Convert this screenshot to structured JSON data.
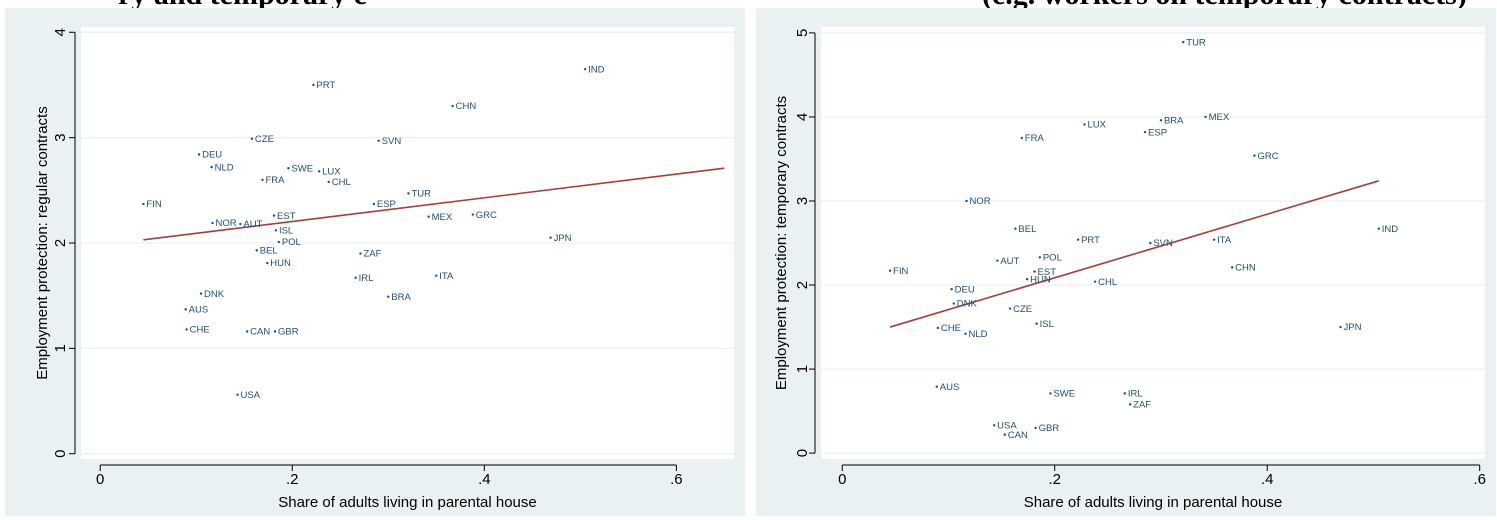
{
  "captions": {
    "left": "ry and temporary e",
    "right": "(e.g. workers on temporary contracts)"
  },
  "chart_data": [
    {
      "type": "scatter",
      "title": "",
      "xlabel": "Share of adults living in parental house",
      "ylabel": "Employment protection: regular contracts",
      "xlim": [
        -0.02,
        0.66
      ],
      "ylim": [
        -0.05,
        4.05
      ],
      "xticks": [
        0,
        0.2,
        0.4,
        0.6
      ],
      "xtick_labels": [
        "0",
        ".2",
        ".4",
        ".6"
      ],
      "yticks": [
        0,
        1,
        2,
        3,
        4
      ],
      "ytick_labels": [
        "0",
        "1",
        "2",
        "3",
        "4"
      ],
      "grid": "horizontal",
      "colors": {
        "points": "#1f4e79",
        "fit_line": "#a0403a"
      },
      "fit_line": {
        "x": [
          0.045,
          0.65
        ],
        "y": [
          2.03,
          2.71
        ]
      },
      "points": [
        {
          "label": "FIN",
          "x": 0.045,
          "y": 2.37
        },
        {
          "label": "DEU",
          "x": 0.103,
          "y": 2.84
        },
        {
          "label": "NLD",
          "x": 0.116,
          "y": 2.72
        },
        {
          "label": "CZE",
          "x": 0.158,
          "y": 2.99
        },
        {
          "label": "NOR",
          "x": 0.117,
          "y": 2.19
        },
        {
          "label": "AUT",
          "x": 0.146,
          "y": 2.18
        },
        {
          "label": "DNK",
          "x": 0.105,
          "y": 1.52
        },
        {
          "label": "AUS",
          "x": 0.089,
          "y": 1.37
        },
        {
          "label": "CHE",
          "x": 0.09,
          "y": 1.18
        },
        {
          "label": "CAN",
          "x": 0.153,
          "y": 1.16
        },
        {
          "label": "GBR",
          "x": 0.182,
          "y": 1.16
        },
        {
          "label": "USA",
          "x": 0.143,
          "y": 0.56
        },
        {
          "label": "PRT",
          "x": 0.222,
          "y": 3.5
        },
        {
          "label": "SWE",
          "x": 0.196,
          "y": 2.71
        },
        {
          "label": "FRA",
          "x": 0.169,
          "y": 2.6
        },
        {
          "label": "LUX",
          "x": 0.228,
          "y": 2.68
        },
        {
          "label": "CHL",
          "x": 0.238,
          "y": 2.58
        },
        {
          "label": "EST",
          "x": 0.181,
          "y": 2.26
        },
        {
          "label": "ISL",
          "x": 0.183,
          "y": 2.12
        },
        {
          "label": "POL",
          "x": 0.186,
          "y": 2.01
        },
        {
          "label": "BEL",
          "x": 0.163,
          "y": 1.93
        },
        {
          "label": "HUN",
          "x": 0.174,
          "y": 1.81
        },
        {
          "label": "SVN",
          "x": 0.29,
          "y": 2.97
        },
        {
          "label": "ESP",
          "x": 0.285,
          "y": 2.37
        },
        {
          "label": "ZAF",
          "x": 0.271,
          "y": 1.9
        },
        {
          "label": "IRL",
          "x": 0.266,
          "y": 1.67
        },
        {
          "label": "BRA",
          "x": 0.3,
          "y": 1.49
        },
        {
          "label": "CHN",
          "x": 0.367,
          "y": 3.3
        },
        {
          "label": "TUR",
          "x": 0.321,
          "y": 2.47
        },
        {
          "label": "MEX",
          "x": 0.342,
          "y": 2.25
        },
        {
          "label": "GRC",
          "x": 0.388,
          "y": 2.27
        },
        {
          "label": "ITA",
          "x": 0.35,
          "y": 1.69
        },
        {
          "label": "JPN",
          "x": 0.469,
          "y": 2.05
        },
        {
          "label": "IND",
          "x": 0.505,
          "y": 3.65
        }
      ]
    },
    {
      "type": "scatter",
      "title": "",
      "xlabel": "Share of adults living in parental house",
      "ylabel": "Employment protection: temporary contracts",
      "xlim": [
        -0.02,
        0.605
      ],
      "ylim": [
        -0.07,
        5.07
      ],
      "xticks": [
        0,
        0.2,
        0.4,
        0.6
      ],
      "xtick_labels": [
        "0",
        ".2",
        ".4",
        ".6"
      ],
      "yticks": [
        0,
        1,
        2,
        3,
        4,
        5
      ],
      "ytick_labels": [
        "0",
        "1",
        "2",
        "3",
        "4",
        "5"
      ],
      "grid": "horizontal",
      "colors": {
        "points": "#1f4e79",
        "fit_line": "#a0403a"
      },
      "fit_line": {
        "x": [
          0.045,
          0.505
        ],
        "y": [
          1.5,
          3.24
        ]
      },
      "points": [
        {
          "label": "FIN",
          "x": 0.045,
          "y": 2.17
        },
        {
          "label": "DEU",
          "x": 0.103,
          "y": 1.95
        },
        {
          "label": "DNK",
          "x": 0.105,
          "y": 1.78
        },
        {
          "label": "CHE",
          "x": 0.09,
          "y": 1.49
        },
        {
          "label": "NLD",
          "x": 0.116,
          "y": 1.42
        },
        {
          "label": "AUS",
          "x": 0.089,
          "y": 0.79
        },
        {
          "label": "NOR",
          "x": 0.117,
          "y": 3.0
        },
        {
          "label": "BEL",
          "x": 0.163,
          "y": 2.67
        },
        {
          "label": "AUT",
          "x": 0.146,
          "y": 2.29
        },
        {
          "label": "CZE",
          "x": 0.158,
          "y": 1.72
        },
        {
          "label": "USA",
          "x": 0.143,
          "y": 0.33
        },
        {
          "label": "CAN",
          "x": 0.153,
          "y": 0.22
        },
        {
          "label": "GBR",
          "x": 0.182,
          "y": 0.3
        },
        {
          "label": "FRA",
          "x": 0.169,
          "y": 3.75
        },
        {
          "label": "POL",
          "x": 0.186,
          "y": 2.33
        },
        {
          "label": "EST",
          "x": 0.181,
          "y": 2.16
        },
        {
          "label": "HUN",
          "x": 0.174,
          "y": 2.07
        },
        {
          "label": "ISL",
          "x": 0.183,
          "y": 1.54
        },
        {
          "label": "SWE",
          "x": 0.196,
          "y": 0.71
        },
        {
          "label": "PRT",
          "x": 0.222,
          "y": 2.54
        },
        {
          "label": "CHL",
          "x": 0.238,
          "y": 2.04
        },
        {
          "label": "LUX",
          "x": 0.228,
          "y": 3.91
        },
        {
          "label": "ESP",
          "x": 0.285,
          "y": 3.82
        },
        {
          "label": "SVN",
          "x": 0.29,
          "y": 2.5
        },
        {
          "label": "IRL",
          "x": 0.266,
          "y": 0.71
        },
        {
          "label": "ZAF",
          "x": 0.271,
          "y": 0.58
        },
        {
          "label": "BRA",
          "x": 0.3,
          "y": 3.96
        },
        {
          "label": "TUR",
          "x": 0.321,
          "y": 4.89
        },
        {
          "label": "MEX",
          "x": 0.342,
          "y": 4.0
        },
        {
          "label": "ITA",
          "x": 0.35,
          "y": 2.54
        },
        {
          "label": "CHN",
          "x": 0.367,
          "y": 2.21
        },
        {
          "label": "GRC",
          "x": 0.388,
          "y": 3.54
        },
        {
          "label": "JPN",
          "x": 0.469,
          "y": 1.5
        },
        {
          "label": "IND",
          "x": 0.505,
          "y": 2.67
        }
      ]
    }
  ]
}
